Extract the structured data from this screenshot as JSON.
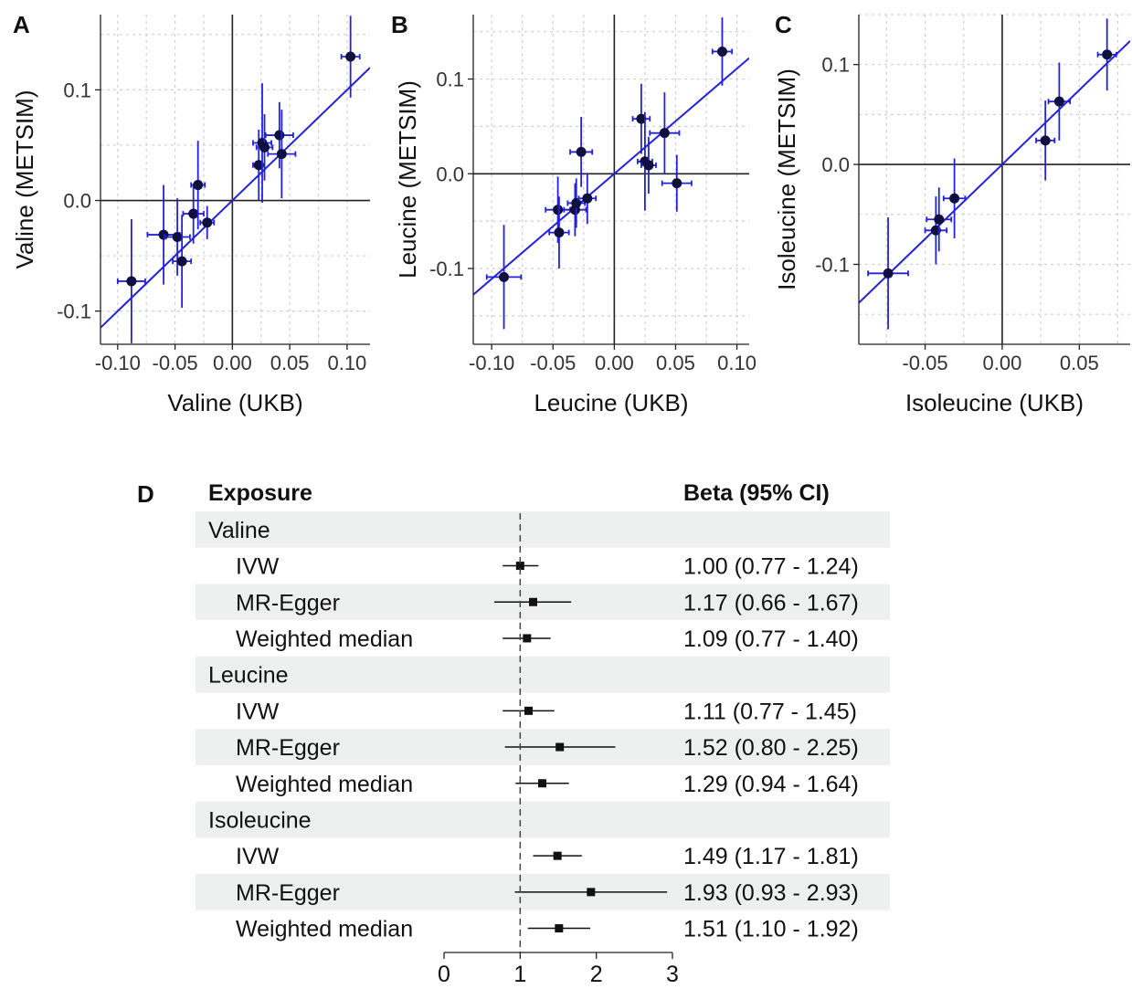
{
  "chart_data": [
    {
      "panel": "A",
      "type": "scatter",
      "xlabel": "Valine (UKB)",
      "ylabel": "Valine (METSIM)",
      "xlim": [
        -0.115,
        0.12
      ],
      "ylim": [
        -0.13,
        0.168
      ],
      "xticks": [
        -0.1,
        -0.05,
        0.0,
        0.05,
        0.1
      ],
      "xtick_labels": [
        "-0.10",
        "-0.05",
        "0.00",
        "0.05",
        "0.10"
      ],
      "yticks": [
        -0.1,
        0.0,
        0.1
      ],
      "ytick_labels": [
        "-0.1",
        "0.0",
        "0.1"
      ],
      "fit_slope": 1.0,
      "points": [
        {
          "x": -0.088,
          "y": -0.073,
          "xerr": 0.012,
          "yerr": 0.056
        },
        {
          "x": -0.06,
          "y": -0.031,
          "xerr": 0.014,
          "yerr": 0.045
        },
        {
          "x": -0.048,
          "y": -0.033,
          "xerr": 0.011,
          "yerr": 0.035
        },
        {
          "x": -0.044,
          "y": -0.055,
          "xerr": 0.008,
          "yerr": 0.042
        },
        {
          "x": -0.034,
          "y": -0.012,
          "xerr": 0.009,
          "yerr": 0.027
        },
        {
          "x": -0.03,
          "y": 0.014,
          "xerr": 0.006,
          "yerr": 0.04
        },
        {
          "x": -0.022,
          "y": -0.02,
          "xerr": 0.006,
          "yerr": 0.015
        },
        {
          "x": 0.023,
          "y": 0.032,
          "xerr": 0.005,
          "yerr": 0.032
        },
        {
          "x": 0.026,
          "y": 0.052,
          "xerr": 0.008,
          "yerr": 0.054
        },
        {
          "x": 0.028,
          "y": 0.048,
          "xerr": 0.007,
          "yerr": 0.03
        },
        {
          "x": 0.041,
          "y": 0.059,
          "xerr": 0.012,
          "yerr": 0.03
        },
        {
          "x": 0.043,
          "y": 0.042,
          "xerr": 0.012,
          "yerr": 0.04
        },
        {
          "x": 0.103,
          "y": 0.13,
          "xerr": 0.008,
          "yerr": 0.037
        }
      ]
    },
    {
      "panel": "B",
      "type": "scatter",
      "xlabel": "Leucine (UKB)",
      "ylabel": "Leucine (METSIM)",
      "xlim": [
        -0.115,
        0.11
      ],
      "ylim": [
        -0.18,
        0.168
      ],
      "xticks": [
        -0.1,
        -0.05,
        0.0,
        0.05,
        0.1
      ],
      "xtick_labels": [
        "-0.10",
        "-0.05",
        "0.00",
        "0.05",
        "0.10"
      ],
      "yticks": [
        -0.1,
        0.0,
        0.1
      ],
      "ytick_labels": [
        "-0.1",
        "0.0",
        "0.1"
      ],
      "fit_slope": 1.11,
      "points": [
        {
          "x": -0.09,
          "y": -0.109,
          "xerr": 0.014,
          "yerr": 0.055
        },
        {
          "x": -0.046,
          "y": -0.038,
          "xerr": 0.01,
          "yerr": 0.035
        },
        {
          "x": -0.045,
          "y": -0.062,
          "xerr": 0.008,
          "yerr": 0.038
        },
        {
          "x": -0.032,
          "y": -0.038,
          "xerr": 0.009,
          "yerr": 0.028
        },
        {
          "x": -0.031,
          "y": -0.031,
          "xerr": 0.007,
          "yerr": 0.026
        },
        {
          "x": -0.027,
          "y": 0.023,
          "xerr": 0.009,
          "yerr": 0.037
        },
        {
          "x": -0.022,
          "y": -0.026,
          "xerr": 0.007,
          "yerr": 0.027
        },
        {
          "x": 0.022,
          "y": 0.058,
          "xerr": 0.007,
          "yerr": 0.037
        },
        {
          "x": 0.025,
          "y": 0.013,
          "xerr": 0.006,
          "yerr": 0.052
        },
        {
          "x": 0.028,
          "y": 0.009,
          "xerr": 0.006,
          "yerr": 0.03
        },
        {
          "x": 0.041,
          "y": 0.043,
          "xerr": 0.012,
          "yerr": 0.043
        },
        {
          "x": 0.051,
          "y": -0.01,
          "xerr": 0.012,
          "yerr": 0.03
        },
        {
          "x": 0.088,
          "y": 0.129,
          "xerr": 0.008,
          "yerr": 0.036
        }
      ]
    },
    {
      "panel": "C",
      "type": "scatter",
      "xlabel": "Isoleucine (UKB)",
      "ylabel": "Isoleucine (METSIM)",
      "xlim": [
        -0.093,
        0.083
      ],
      "ylim": [
        -0.18,
        0.15
      ],
      "xticks": [
        -0.05,
        0.0,
        0.05
      ],
      "xtick_labels": [
        "-0.05",
        "0.00",
        "0.05"
      ],
      "yticks": [
        -0.1,
        0.0,
        0.1
      ],
      "ytick_labels": [
        "-0.1",
        "0.0",
        "0.1"
      ],
      "fit_slope": 1.49,
      "points": [
        {
          "x": -0.074,
          "y": -0.109,
          "xerr": 0.013,
          "yerr": 0.056
        },
        {
          "x": -0.043,
          "y": -0.066,
          "xerr": 0.007,
          "yerr": 0.034
        },
        {
          "x": -0.041,
          "y": -0.055,
          "xerr": 0.008,
          "yerr": 0.032
        },
        {
          "x": -0.031,
          "y": -0.034,
          "xerr": 0.007,
          "yerr": 0.04
        },
        {
          "x": 0.028,
          "y": 0.024,
          "xerr": 0.006,
          "yerr": 0.04
        },
        {
          "x": 0.037,
          "y": 0.063,
          "xerr": 0.007,
          "yerr": 0.039
        },
        {
          "x": 0.068,
          "y": 0.11,
          "xerr": 0.006,
          "yerr": 0.036
        }
      ]
    },
    {
      "panel": "D",
      "type": "forest",
      "header_exposure": "Exposure",
      "header_beta": "Beta (95% CI)",
      "xlim": [
        0,
        3
      ],
      "xticks": [
        0,
        1,
        2,
        3
      ],
      "xtick_labels": [
        "0",
        "1",
        "2",
        "3"
      ],
      "reference_line": 1,
      "groups": [
        {
          "name": "Valine",
          "rows": [
            {
              "method": "IVW",
              "est": 1.0,
              "lo": 0.77,
              "hi": 1.24,
              "label": "1.00 (0.77 - 1.24)"
            },
            {
              "method": "MR-Egger",
              "est": 1.17,
              "lo": 0.66,
              "hi": 1.67,
              "label": "1.17 (0.66 - 1.67)"
            },
            {
              "method": "Weighted median",
              "est": 1.09,
              "lo": 0.77,
              "hi": 1.4,
              "label": "1.09 (0.77 - 1.40)"
            }
          ]
        },
        {
          "name": "Leucine",
          "rows": [
            {
              "method": "IVW",
              "est": 1.11,
              "lo": 0.77,
              "hi": 1.45,
              "label": "1.11 (0.77 - 1.45)"
            },
            {
              "method": "MR-Egger",
              "est": 1.52,
              "lo": 0.8,
              "hi": 2.25,
              "label": "1.52 (0.80 - 2.25)"
            },
            {
              "method": "Weighted median",
              "est": 1.29,
              "lo": 0.94,
              "hi": 1.64,
              "label": "1.29 (0.94 - 1.64)"
            }
          ]
        },
        {
          "name": "Isoleucine",
          "rows": [
            {
              "method": "IVW",
              "est": 1.49,
              "lo": 1.17,
              "hi": 1.81,
              "label": "1.49 (1.17 - 1.81)"
            },
            {
              "method": "MR-Egger",
              "est": 1.93,
              "lo": 0.93,
              "hi": 2.93,
              "label": "1.93 (0.93 - 2.93)"
            },
            {
              "method": "Weighted median",
              "est": 1.51,
              "lo": 1.1,
              "hi": 1.92,
              "label": "1.51 (1.10 - 1.92)"
            }
          ]
        }
      ]
    }
  ]
}
